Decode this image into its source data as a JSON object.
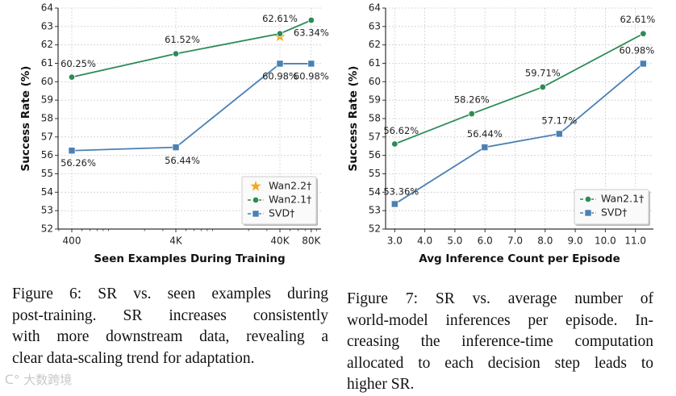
{
  "chart_data": [
    {
      "type": "line",
      "xscale": "log",
      "xlabel": "Seen Examples During Training",
      "ylabel": "Success Rate (%)",
      "ylim": [
        52,
        64
      ],
      "yticks": [
        52,
        53,
        54,
        55,
        56,
        57,
        58,
        59,
        60,
        61,
        62,
        63,
        64
      ],
      "xticks": [
        400,
        4000,
        40000,
        80000
      ],
      "xtick_labels": [
        "400",
        "4K",
        "40K",
        "80K"
      ],
      "grid": true,
      "legend": "bottom-right",
      "series": [
        {
          "name": "Wan2.2†",
          "marker": "star",
          "color": "#f4a81d",
          "line": false,
          "x": [
            40000
          ],
          "y": [
            62.45
          ],
          "labels": []
        },
        {
          "name": "Wan2.1†",
          "marker": "circle",
          "color": "#2e8b57",
          "line": true,
          "x": [
            400,
            4000,
            40000,
            80000
          ],
          "y": [
            60.25,
            61.52,
            62.61,
            63.34
          ],
          "labels": [
            "60.25%",
            "61.52%",
            "62.61%",
            "63.34%"
          ]
        },
        {
          "name": "SVD†",
          "marker": "square",
          "color": "#4a80b4",
          "line": true,
          "x": [
            400,
            4000,
            40000,
            80000
          ],
          "y": [
            56.26,
            56.44,
            60.98,
            60.98
          ],
          "labels": [
            "56.26%",
            "56.44%",
            "60.98%",
            "60.98%"
          ]
        }
      ]
    },
    {
      "type": "line",
      "xscale": "linear",
      "xlabel": "Avg Inference Count per Episode",
      "ylabel": "Success Rate (%)",
      "ylim": [
        52,
        64
      ],
      "xlim": [
        2.7,
        11.6
      ],
      "yticks": [
        52,
        53,
        54,
        55,
        56,
        57,
        58,
        59,
        60,
        61,
        62,
        63,
        64
      ],
      "xticks": [
        3,
        4,
        5,
        6,
        7,
        8,
        9,
        10,
        11
      ],
      "xtick_labels": [
        "3.0",
        "4.0",
        "5.0",
        "6.0",
        "7.0",
        "8.0",
        "9.0",
        "10.0",
        "11.0"
      ],
      "grid": true,
      "legend": "bottom-right",
      "series": [
        {
          "name": "Wan2.1†",
          "marker": "circle",
          "color": "#2e8b57",
          "line": true,
          "x": [
            3.0,
            5.56,
            7.92,
            11.26
          ],
          "y": [
            56.62,
            58.26,
            59.71,
            62.61
          ],
          "labels": [
            "56.62%",
            "58.26%",
            "59.71%",
            "62.61%"
          ]
        },
        {
          "name": "SVD†",
          "marker": "square",
          "color": "#4a80b4",
          "line": true,
          "x": [
            3.0,
            5.99,
            8.47,
            11.26
          ],
          "y": [
            53.36,
            56.44,
            57.17,
            60.98
          ],
          "labels": [
            "53.36%",
            "56.44%",
            "57.17%",
            "60.98%"
          ]
        }
      ]
    }
  ],
  "captions": {
    "fig6": [
      "Figure 6: SR vs.  seen examples during",
      "post-training.  SR increases consistently",
      "with more downstream data, revealing a",
      "clear data-scaling trend for adaptation."
    ],
    "fig7": [
      "Figure 7:  SR vs.   average number of",
      "world-model inferences per episode. In-",
      "creasing the inference-time computation",
      "allocated to each decision step leads to",
      "higher SR."
    ]
  },
  "watermark": "大数跨境"
}
